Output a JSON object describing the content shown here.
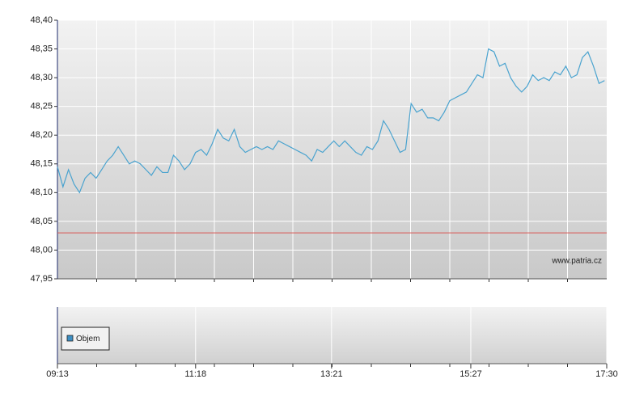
{
  "chart_data": {
    "type": "line",
    "x": [
      553,
      558,
      563,
      568,
      573,
      578,
      583,
      588,
      593,
      598,
      603,
      608,
      613,
      618,
      623,
      628,
      633,
      638,
      643,
      648,
      653,
      658,
      663,
      668,
      673,
      678,
      683,
      688,
      693,
      698,
      703,
      708,
      713,
      718,
      723,
      728,
      733,
      738,
      743,
      748,
      753,
      758,
      763,
      768,
      773,
      778,
      783,
      788,
      793,
      798,
      803,
      808,
      813,
      818,
      823,
      828,
      833,
      838,
      843,
      848,
      853,
      858,
      863,
      868,
      873,
      878,
      883,
      888,
      893,
      898,
      903,
      908,
      913,
      918,
      923,
      928,
      933,
      938,
      943,
      948,
      953,
      958,
      963,
      968,
      973,
      978,
      983,
      988,
      993,
      998,
      1003,
      1008,
      1013,
      1018,
      1023,
      1028,
      1033,
      1038,
      1043,
      1048
    ],
    "series": [
      {
        "color": "#4aa3cf",
        "values": [
          48.145,
          48.11,
          48.14,
          48.115,
          48.1,
          48.125,
          48.135,
          48.125,
          48.14,
          48.155,
          48.165,
          48.18,
          48.165,
          48.15,
          48.155,
          48.15,
          48.14,
          48.13,
          48.145,
          48.135,
          48.135,
          48.165,
          48.155,
          48.14,
          48.15,
          48.17,
          48.175,
          48.165,
          48.185,
          48.21,
          48.195,
          48.19,
          48.21,
          48.18,
          48.17,
          48.175,
          48.18,
          48.175,
          48.18,
          48.175,
          48.19,
          48.185,
          48.18,
          48.175,
          48.17,
          48.165,
          48.155,
          48.175,
          48.17,
          48.18,
          48.19,
          48.18,
          48.19,
          48.18,
          48.17,
          48.165,
          48.18,
          48.175,
          48.19,
          48.225,
          48.21,
          48.19,
          48.17,
          48.175,
          48.255,
          48.24,
          48.245,
          48.23,
          48.23,
          48.225,
          48.24,
          48.26,
          48.265,
          48.27,
          48.275,
          48.29,
          48.305,
          48.3,
          48.35,
          48.345,
          48.32,
          48.325,
          48.3,
          48.285,
          48.275,
          48.285,
          48.305,
          48.295,
          48.3,
          48.295,
          48.31,
          48.305,
          48.32,
          48.3,
          48.305,
          48.335,
          48.345,
          48.32,
          48.29,
          48.295
        ]
      }
    ],
    "xlim": [
      553,
      1050
    ],
    "xticks": [
      {
        "value": 553,
        "label": "09:13"
      },
      {
        "value": 678,
        "label": "11:18"
      },
      {
        "value": 801,
        "label": "13:21"
      },
      {
        "value": 927,
        "label": "15:27"
      },
      {
        "value": 1050,
        "label": "17:30"
      }
    ],
    "ylim": [
      47.95,
      48.4
    ],
    "yticks": [
      {
        "value": 47.95,
        "label": "47,95"
      },
      {
        "value": 48.0,
        "label": "48,00"
      },
      {
        "value": 48.05,
        "label": "48,05"
      },
      {
        "value": 48.1,
        "label": "48,10"
      },
      {
        "value": 48.15,
        "label": "48,15"
      },
      {
        "value": 48.2,
        "label": "48,20"
      },
      {
        "value": 48.25,
        "label": "48,25"
      },
      {
        "value": 48.3,
        "label": "48,30"
      },
      {
        "value": 48.35,
        "label": "48,35"
      },
      {
        "value": 48.4,
        "label": "48,40"
      }
    ],
    "grid": true,
    "reference_line": {
      "value": 48.03,
      "color": "#d9534f"
    },
    "watermark": "www.patria.cz",
    "volume_panel": {
      "legend": "Objem",
      "color": "#3d8fc4"
    }
  }
}
